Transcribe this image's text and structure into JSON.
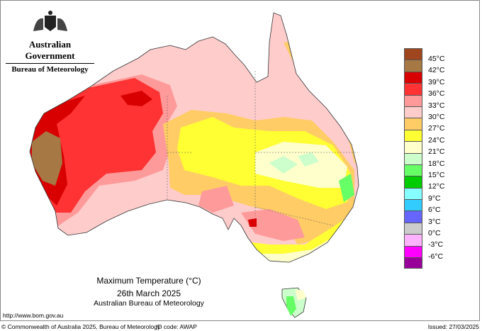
{
  "header": {
    "government": "Australian Government",
    "agency": "Bureau of Meteorology"
  },
  "title": {
    "line1": "Maximum Temperature (°C)",
    "line2": "26th March 2025",
    "line3": "Australian Bureau of Meteorology"
  },
  "legend": [
    {
      "color": "#a0461e",
      "label": "45°C"
    },
    {
      "color": "#a67844",
      "label": "42°C"
    },
    {
      "color": "#d80000",
      "label": "39°C"
    },
    {
      "color": "#ff3333",
      "label": "36°C"
    },
    {
      "color": "#ff9a9a",
      "label": "33°C"
    },
    {
      "color": "#ffcccc",
      "label": "30°C"
    },
    {
      "color": "#ffcc66",
      "label": "27°C"
    },
    {
      "color": "#ffff33",
      "label": "24°C"
    },
    {
      "color": "#ffffcc",
      "label": "21°C"
    },
    {
      "color": "#ccffcc",
      "label": "18°C"
    },
    {
      "color": "#66ff66",
      "label": "15°C"
    },
    {
      "color": "#00cc00",
      "label": "12°C"
    },
    {
      "color": "#88ffff",
      "label": "9°C"
    },
    {
      "color": "#33ccff",
      "label": "6°C"
    },
    {
      "color": "#6666ff",
      "label": "3°C"
    },
    {
      "color": "#cccccc",
      "label": "0°C"
    },
    {
      "color": "#ffb3ff",
      "label": "-3°C"
    },
    {
      "color": "#ff00ff",
      "label": "-6°C"
    },
    {
      "color": "#990099",
      "label": ""
    }
  ],
  "footer": {
    "url": "http://www.bom.gov.au",
    "copyright": "© Commonwealth of Australia 2025, Bureau of Meteorology",
    "id_code": "ID code: AWAP",
    "issued": "Issued: 27/03/2025"
  }
}
